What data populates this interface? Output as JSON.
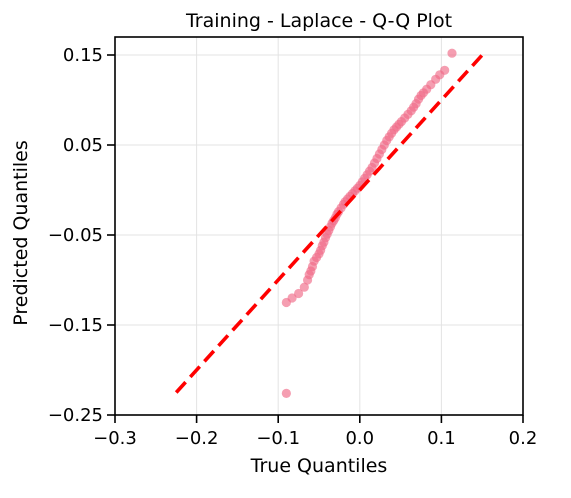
{
  "chart_data": {
    "type": "scatter",
    "title": "Training - Laplace - Q-Q Plot",
    "xlabel": "True Quantiles",
    "ylabel": "Predicted Quantiles",
    "xlim": [
      -0.3,
      0.2
    ],
    "ylim": [
      -0.25,
      0.17
    ],
    "xticks": [
      -0.3,
      -0.2,
      -0.1,
      0.0,
      0.1,
      0.2
    ],
    "xtick_labels": [
      "−0.3",
      "−0.2",
      "−0.1",
      "0.0",
      "0.1",
      "0.2"
    ],
    "yticks": [
      -0.25,
      -0.15,
      -0.05,
      0.05,
      0.15
    ],
    "ytick_labels": [
      "−0.25",
      "−0.15",
      "−0.05",
      "0.05",
      "0.15"
    ],
    "grid": true,
    "colors": {
      "points": "#f06a87",
      "reference_line": "#ff0000",
      "grid": "#e3e3e3"
    },
    "reference_line": {
      "style": "dashed",
      "x": [
        -0.225,
        0.15
      ],
      "y": [
        -0.225,
        0.15
      ]
    },
    "points": [
      [
        -0.09,
        -0.226
      ],
      [
        -0.09,
        -0.125
      ],
      [
        -0.083,
        -0.12
      ],
      [
        -0.075,
        -0.115
      ],
      [
        -0.068,
        -0.108
      ],
      [
        -0.064,
        -0.1
      ],
      [
        -0.062,
        -0.094
      ],
      [
        -0.06,
        -0.09
      ],
      [
        -0.058,
        -0.085
      ],
      [
        -0.056,
        -0.079
      ],
      [
        -0.053,
        -0.075
      ],
      [
        -0.05,
        -0.071
      ],
      [
        -0.048,
        -0.067
      ],
      [
        -0.046,
        -0.062
      ],
      [
        -0.044,
        -0.058
      ],
      [
        -0.042,
        -0.053
      ],
      [
        -0.04,
        -0.049
      ],
      [
        -0.038,
        -0.045
      ],
      [
        -0.036,
        -0.041
      ],
      [
        -0.034,
        -0.037
      ],
      [
        -0.032,
        -0.034
      ],
      [
        -0.03,
        -0.031
      ],
      [
        -0.028,
        -0.027
      ],
      [
        -0.026,
        -0.024
      ],
      [
        -0.023,
        -0.02
      ],
      [
        -0.02,
        -0.016
      ],
      [
        -0.018,
        -0.013
      ],
      [
        -0.015,
        -0.01
      ],
      [
        -0.012,
        -0.007
      ],
      [
        -0.009,
        -0.004
      ],
      [
        -0.006,
        -0.001
      ],
      [
        -0.003,
        0.002
      ],
      [
        0.0,
        0.005
      ],
      [
        0.003,
        0.009
      ],
      [
        0.006,
        0.013
      ],
      [
        0.009,
        0.017
      ],
      [
        0.012,
        0.021
      ],
      [
        0.015,
        0.025
      ],
      [
        0.018,
        0.03
      ],
      [
        0.021,
        0.035
      ],
      [
        0.024,
        0.04
      ],
      [
        0.027,
        0.045
      ],
      [
        0.03,
        0.05
      ],
      [
        0.033,
        0.055
      ],
      [
        0.036,
        0.059
      ],
      [
        0.039,
        0.063
      ],
      [
        0.042,
        0.067
      ],
      [
        0.045,
        0.07
      ],
      [
        0.048,
        0.073
      ],
      [
        0.051,
        0.076
      ],
      [
        0.055,
        0.08
      ],
      [
        0.059,
        0.084
      ],
      [
        0.063,
        0.088
      ],
      [
        0.066,
        0.092
      ],
      [
        0.069,
        0.096
      ],
      [
        0.072,
        0.101
      ],
      [
        0.075,
        0.105
      ],
      [
        0.078,
        0.108
      ],
      [
        0.082,
        0.112
      ],
      [
        0.087,
        0.117
      ],
      [
        0.093,
        0.123
      ],
      [
        0.098,
        0.128
      ],
      [
        0.104,
        0.133
      ],
      [
        0.113,
        0.152
      ]
    ]
  }
}
